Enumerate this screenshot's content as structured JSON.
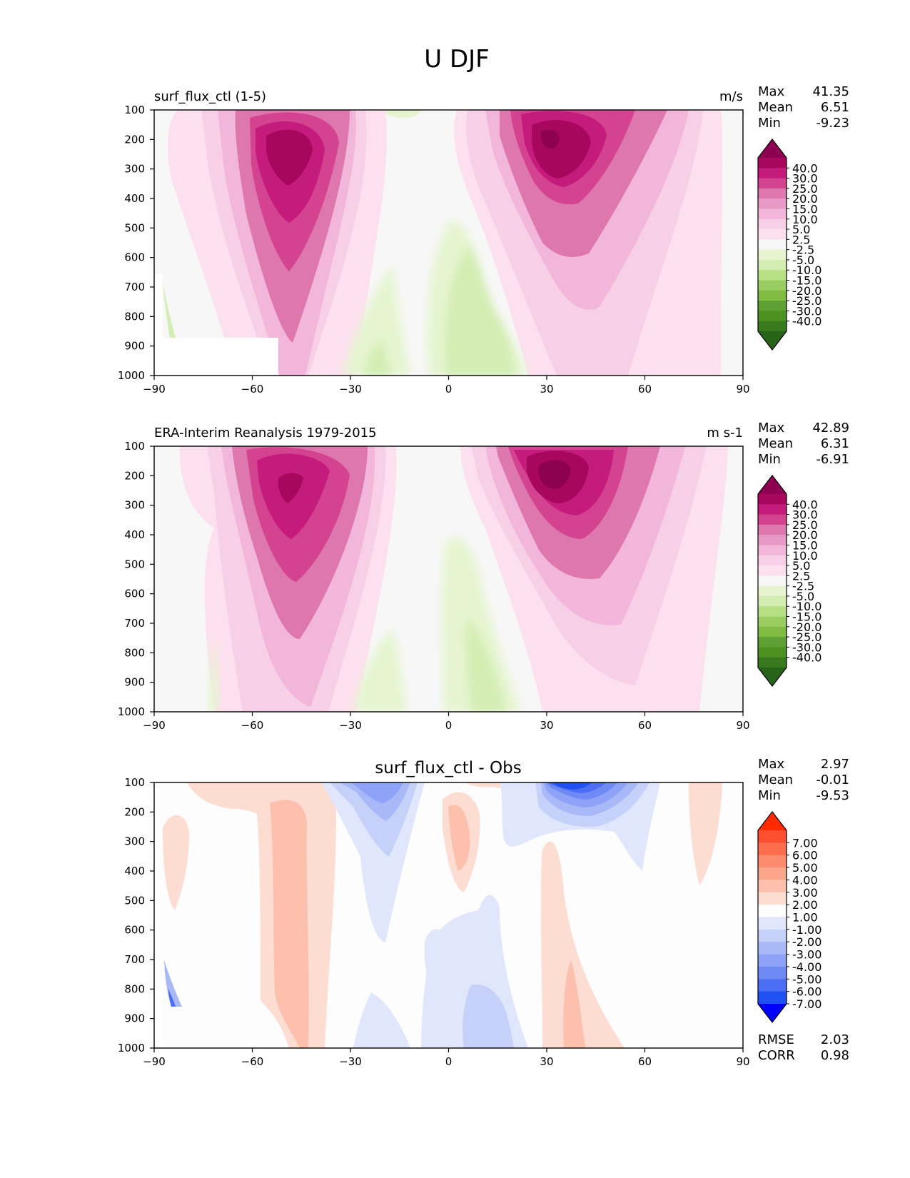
{
  "figure_title": "U DJF",
  "panels": [
    {
      "name": "model",
      "title_left": "surf_flux_ctl (1-5)",
      "title_center": "",
      "units": "m/s",
      "stats": [
        {
          "label": "Max",
          "value": "41.35"
        },
        {
          "label": "Mean",
          "value": "6.51"
        },
        {
          "label": "Min",
          "value": "-9.23"
        }
      ],
      "colorbar": {
        "labels": [
          "40.0",
          "30.0",
          "25.0",
          "20.0",
          "15.0",
          "10.0",
          "5.0",
          "2.5",
          "-2.5",
          "-5.0",
          "-10.0",
          "-15.0",
          "-20.0",
          "-25.0",
          "-30.0",
          "-40.0"
        ],
        "colors": [
          "#8e0152",
          "#a8075e",
          "#c51b7d",
          "#d4438f",
          "#de77ae",
          "#e89ac6",
          "#f1b6da",
          "#f7d0e7",
          "#fde0ef",
          "#f7f7f7",
          "#e6f5d0",
          "#d3edb3",
          "#b8e186",
          "#9acd61",
          "#7fbc41",
          "#5fa034",
          "#4d9221",
          "#3a7a1e",
          "#276419"
        ]
      },
      "footer_stats": []
    },
    {
      "name": "obs",
      "title_left": "ERA-Interim Reanalysis 1979-2015",
      "title_center": "",
      "units": "m s-1",
      "stats": [
        {
          "label": "Max",
          "value": "42.89"
        },
        {
          "label": "Mean",
          "value": "6.31"
        },
        {
          "label": "Min",
          "value": "-6.91"
        }
      ],
      "colorbar": {
        "labels": [
          "40.0",
          "30.0",
          "25.0",
          "20.0",
          "15.0",
          "10.0",
          "5.0",
          "2.5",
          "-2.5",
          "-5.0",
          "-10.0",
          "-15.0",
          "-20.0",
          "-25.0",
          "-30.0",
          "-40.0"
        ],
        "colors": [
          "#8e0152",
          "#a8075e",
          "#c51b7d",
          "#d4438f",
          "#de77ae",
          "#e89ac6",
          "#f1b6da",
          "#f7d0e7",
          "#fde0ef",
          "#f7f7f7",
          "#e6f5d0",
          "#d3edb3",
          "#b8e186",
          "#9acd61",
          "#7fbc41",
          "#5fa034",
          "#4d9221",
          "#3a7a1e",
          "#276419"
        ]
      },
      "footer_stats": []
    },
    {
      "name": "diff",
      "title_left": "",
      "title_center": "surf_flux_ctl - Obs",
      "units": "",
      "stats": [
        {
          "label": "Max",
          "value": "2.97"
        },
        {
          "label": "Mean",
          "value": "-0.01"
        },
        {
          "label": "Min",
          "value": "-9.53"
        }
      ],
      "colorbar": {
        "labels": [
          "7.00",
          "6.00",
          "5.00",
          "4.00",
          "3.00",
          "2.00",
          "1.00",
          "-1.00",
          "-2.00",
          "-3.00",
          "-4.00",
          "-5.00",
          "-6.00",
          "-7.00"
        ],
        "colors": [
          "#ff2a00",
          "#fe5030",
          "#fd6e4f",
          "#fd8b6d",
          "#fca58d",
          "#fcc0ad",
          "#fddcd1",
          "#fdfdfd",
          "#e0e6fb",
          "#c6d1fa",
          "#a9b9f8",
          "#8ea3f7",
          "#6f89f5",
          "#4b6ef4",
          "#2052f3",
          "#0000ff"
        ]
      },
      "footer_stats": [
        {
          "label": "RMSE",
          "value": "2.03"
        },
        {
          "label": "CORR",
          "value": "0.98"
        }
      ]
    }
  ],
  "axes": {
    "x_ticks": [
      "−90",
      "−60",
      "−30",
      "0",
      "30",
      "60",
      "90"
    ],
    "y_ticks": [
      "100",
      "200",
      "300",
      "400",
      "500",
      "600",
      "700",
      "800",
      "900",
      "1000"
    ],
    "xlim": [
      -90,
      90
    ],
    "ylim": [
      1000,
      100
    ]
  },
  "chart_data": [
    {
      "type": "heatmap",
      "title": "surf_flux_ctl (1-5)",
      "units": "m/s",
      "x_ticks": [
        -90,
        -60,
        -30,
        0,
        30,
        60,
        90
      ],
      "y_ticks": [
        100,
        200,
        300,
        400,
        500,
        600,
        700,
        800,
        900,
        1000
      ],
      "xlim": [
        -90,
        90
      ],
      "ylim": [
        1000,
        100
      ],
      "levels": [
        -40,
        -30,
        -25,
        -20,
        -15,
        -10,
        -5,
        -2.5,
        2.5,
        5,
        10,
        15,
        20,
        25,
        30,
        40
      ],
      "jets": [
        {
          "lat": -48,
          "level_hPa": 250,
          "max_value": 35
        },
        {
          "lat": 30,
          "level_hPa": 200,
          "max_value": 41.35
        }
      ],
      "stats": {
        "max": 41.35,
        "mean": 6.51,
        "min": -9.23
      }
    },
    {
      "type": "heatmap",
      "title": "ERA-Interim Reanalysis 1979-2015",
      "units": "m s-1",
      "x_ticks": [
        -90,
        -60,
        -30,
        0,
        30,
        60,
        90
      ],
      "y_ticks": [
        100,
        200,
        300,
        400,
        500,
        600,
        700,
        800,
        900,
        1000
      ],
      "xlim": [
        -90,
        90
      ],
      "ylim": [
        1000,
        100
      ],
      "levels": [
        -40,
        -30,
        -25,
        -20,
        -15,
        -10,
        -5,
        -2.5,
        2.5,
        5,
        10,
        15,
        20,
        25,
        30,
        40
      ],
      "jets": [
        {
          "lat": -48,
          "level_hPa": 220,
          "max_value": 35
        },
        {
          "lat": 31,
          "level_hPa": 200,
          "max_value": 42.89
        }
      ],
      "stats": {
        "max": 42.89,
        "mean": 6.31,
        "min": -6.91
      }
    },
    {
      "type": "heatmap",
      "title": "surf_flux_ctl - Obs",
      "x_ticks": [
        -90,
        -60,
        -30,
        0,
        30,
        60,
        90
      ],
      "y_ticks": [
        100,
        200,
        300,
        400,
        500,
        600,
        700,
        800,
        900,
        1000
      ],
      "xlim": [
        -90,
        90
      ],
      "ylim": [
        1000,
        100
      ],
      "levels": [
        -7,
        -6,
        -5,
        -4,
        -3,
        -2,
        -1,
        1,
        2,
        3,
        4,
        5,
        6,
        7
      ],
      "stats": {
        "max": 2.97,
        "mean": -0.01,
        "min": -9.53,
        "rmse": 2.03,
        "corr": 0.98
      }
    }
  ]
}
